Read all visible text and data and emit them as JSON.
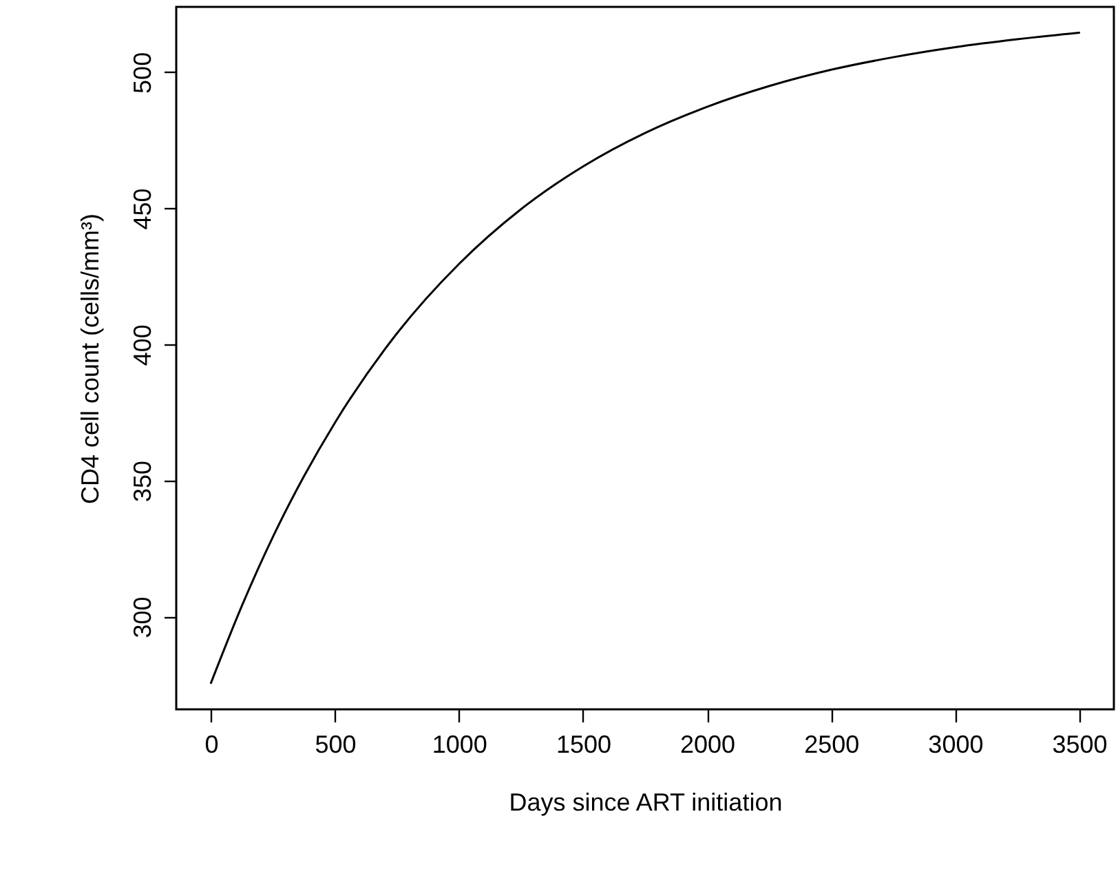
{
  "chart_data": {
    "type": "line",
    "xlabel": "Days since ART initiation",
    "ylabel": "CD4 cell count (cells/mm³)",
    "x": [
      0,
      125,
      250,
      375,
      500,
      750,
      1000,
      1250,
      1500,
      1750,
      2000,
      2250,
      2500,
      2750,
      3000,
      3250,
      3500
    ],
    "series": [
      {
        "color": "#000000",
        "values": [
          275.7,
          304.1,
          329.4,
          351.6,
          371.3,
          404.1,
          429.6,
          449.7,
          465.4,
          477.7,
          487.3,
          494.9,
          500.9,
          505.5,
          509.2,
          512.1,
          514.5
        ]
      }
    ],
    "xlim": [
      -140,
      3640
    ],
    "ylim": [
      266,
      524
    ],
    "xticks": [
      0,
      500,
      1000,
      1500,
      2000,
      2500,
      3000,
      3500
    ],
    "yticks": [
      300,
      350,
      400,
      450,
      500
    ],
    "grid": false,
    "marker": "none",
    "line_style": "solid"
  }
}
